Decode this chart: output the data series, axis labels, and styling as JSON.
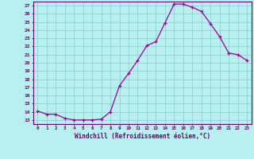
{
  "x": [
    0,
    1,
    2,
    3,
    4,
    5,
    6,
    7,
    8,
    9,
    10,
    11,
    12,
    13,
    14,
    15,
    16,
    17,
    18,
    19,
    20,
    21,
    22,
    23
  ],
  "y": [
    14.1,
    13.7,
    13.7,
    13.2,
    13.0,
    13.0,
    13.0,
    13.1,
    14.0,
    17.2,
    18.7,
    20.3,
    22.1,
    22.6,
    24.9,
    27.2,
    27.2,
    26.8,
    26.3,
    24.8,
    23.2,
    21.2,
    21.0,
    20.3
  ],
  "line_color": "#990099",
  "marker": "+",
  "bg_color": "#b8f0f0",
  "grid_color": "#88cccc",
  "axis_color": "#660066",
  "xlabel": "Windchill (Refroidissement éolien,°C)",
  "ytick_values": [
    13,
    14,
    15,
    16,
    17,
    18,
    19,
    20,
    21,
    22,
    23,
    24,
    25,
    26,
    27
  ],
  "xtick_values": [
    0,
    1,
    2,
    3,
    4,
    5,
    6,
    7,
    8,
    9,
    10,
    11,
    12,
    13,
    14,
    15,
    16,
    17,
    18,
    19,
    20,
    21,
    22,
    23
  ],
  "xlim": [
    -0.5,
    23.5
  ],
  "ylim": [
    12.5,
    27.5
  ]
}
